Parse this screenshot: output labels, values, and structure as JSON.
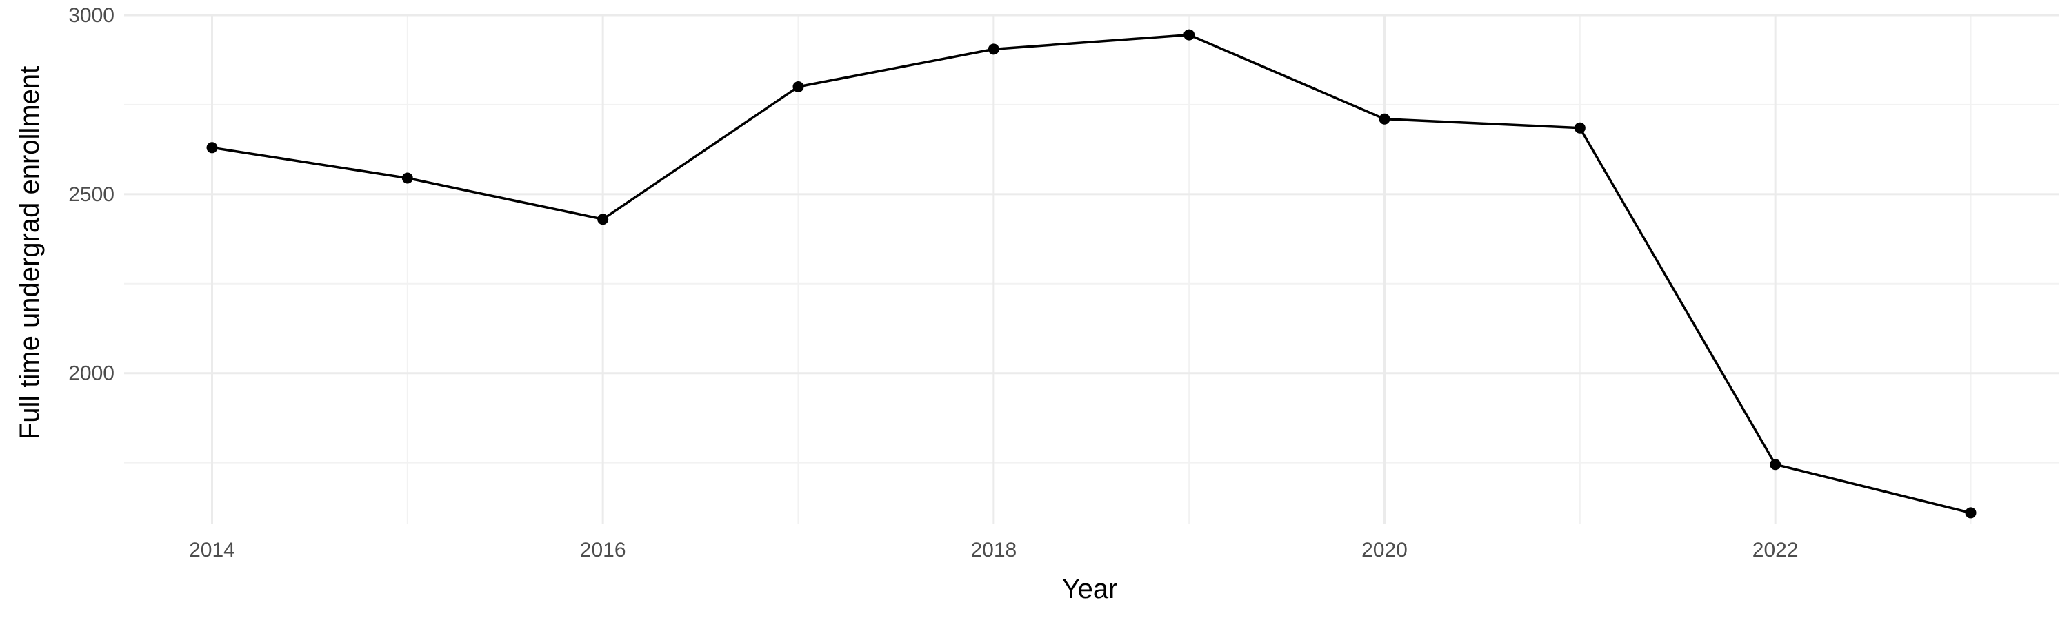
{
  "chart_data": {
    "type": "line",
    "title": "",
    "xlabel": "Year",
    "ylabel": "Full time undergrad enrollment",
    "x": [
      2014,
      2015,
      2016,
      2017,
      2018,
      2019,
      2020,
      2021,
      2022,
      2023
    ],
    "series": [
      {
        "values": [
          2630,
          2545,
          2430,
          2800,
          2905,
          2945,
          2710,
          2685,
          1745,
          1610
        ]
      }
    ],
    "xlim": [
      2013.55,
      2023.45
    ],
    "ylim": [
      1580,
      3000
    ],
    "xticks": [
      2014,
      2016,
      2018,
      2020,
      2022
    ],
    "yticks": [
      2000,
      2500,
      3000
    ],
    "xtick_labels": [
      "2014",
      "2016",
      "2018",
      "2020",
      "2022"
    ],
    "ytick_labels": [
      "2000",
      "2500",
      "3000"
    ],
    "grid": true,
    "legend": "none",
    "colors": {
      "line": "#000000",
      "point": "#000000",
      "grid_major": "#ebebeb",
      "grid_minor": "#f2f2f2",
      "tick_text": "#4d4d4d"
    }
  }
}
